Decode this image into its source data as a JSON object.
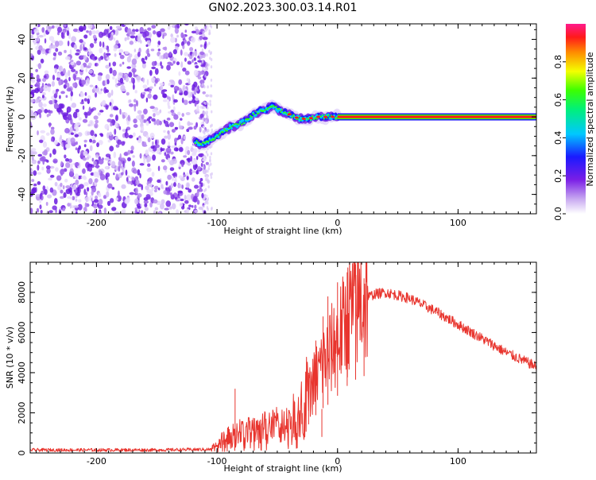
{
  "title": "GN02.2023.300.03.14.R01",
  "colors": {
    "snr_line": "#e8352e",
    "axes": "#000000"
  },
  "chart_data": [
    {
      "type": "heatmap",
      "name": "spectrogram",
      "xlabel": "Height of straight line (km)",
      "ylabel": "Frequency (Hz)",
      "xlim": [
        -255,
        165
      ],
      "ylim": [
        -50,
        48
      ],
      "xticks": [
        -200,
        -100,
        0,
        100
      ],
      "yticks": [
        -40,
        -20,
        0,
        20,
        40
      ],
      "noise_region_x": [
        -255,
        -108
      ],
      "trace": {
        "x": [
          -118,
          -112,
          -106,
          -100,
          -94,
          -88,
          -82,
          -76,
          -70,
          -64,
          -58,
          -54,
          -50,
          -46,
          -42,
          -36,
          -30,
          -24,
          -18,
          -12,
          -6,
          0
        ],
        "y": [
          -13,
          -14,
          -12,
          -10,
          -7,
          -5,
          -4,
          -2,
          1,
          3,
          4,
          6,
          4,
          3,
          2,
          0,
          -1,
          -1,
          0,
          0,
          0,
          0
        ]
      },
      "carrier": {
        "x_range": [
          0,
          165
        ],
        "frequency": 0
      },
      "colorbar": {
        "label": "Normalized spectral amplitude",
        "range": [
          0,
          1
        ],
        "ticks": [
          "0.0",
          "0.2",
          "0.4",
          "0.6",
          "0.8"
        ]
      }
    },
    {
      "type": "line",
      "name": "snr",
      "xlabel": "Height of straight line (km)",
      "ylabel": "SNR (10 * v/v)",
      "xlim": [
        -255,
        165
      ],
      "ylim": [
        0,
        9500
      ],
      "xticks": [
        -200,
        -100,
        0,
        100
      ],
      "yticks": [
        0,
        2000,
        4000,
        6000,
        8000
      ],
      "envelope": {
        "x": [
          -255,
          -150,
          -105,
          -95,
          -80,
          -60,
          -45,
          -35,
          -28,
          -20,
          -14,
          -8,
          -2,
          5,
          10,
          20,
          30,
          40,
          60,
          80,
          100,
          120,
          140,
          165
        ],
        "y": [
          150,
          150,
          180,
          600,
          900,
          1100,
          1300,
          1600,
          2200,
          3500,
          4300,
          4800,
          5500,
          6200,
          7000,
          7600,
          7900,
          8000,
          7700,
          7100,
          6400,
          5700,
          5000,
          4300
        ]
      },
      "spikes": [
        {
          "x": -85,
          "y": 3200
        },
        {
          "x": -36,
          "y": 2600
        },
        {
          "x": -24,
          "y": 4000
        },
        {
          "x": -18,
          "y": 5600
        },
        {
          "x": -13,
          "y": 800
        },
        {
          "x": -12,
          "y": 6800
        },
        {
          "x": -8,
          "y": 7800
        },
        {
          "x": 0,
          "y": 8500
        },
        {
          "x": 8,
          "y": 9000
        },
        {
          "x": 15,
          "y": 9400
        },
        {
          "x": 22,
          "y": 8700
        }
      ]
    }
  ]
}
